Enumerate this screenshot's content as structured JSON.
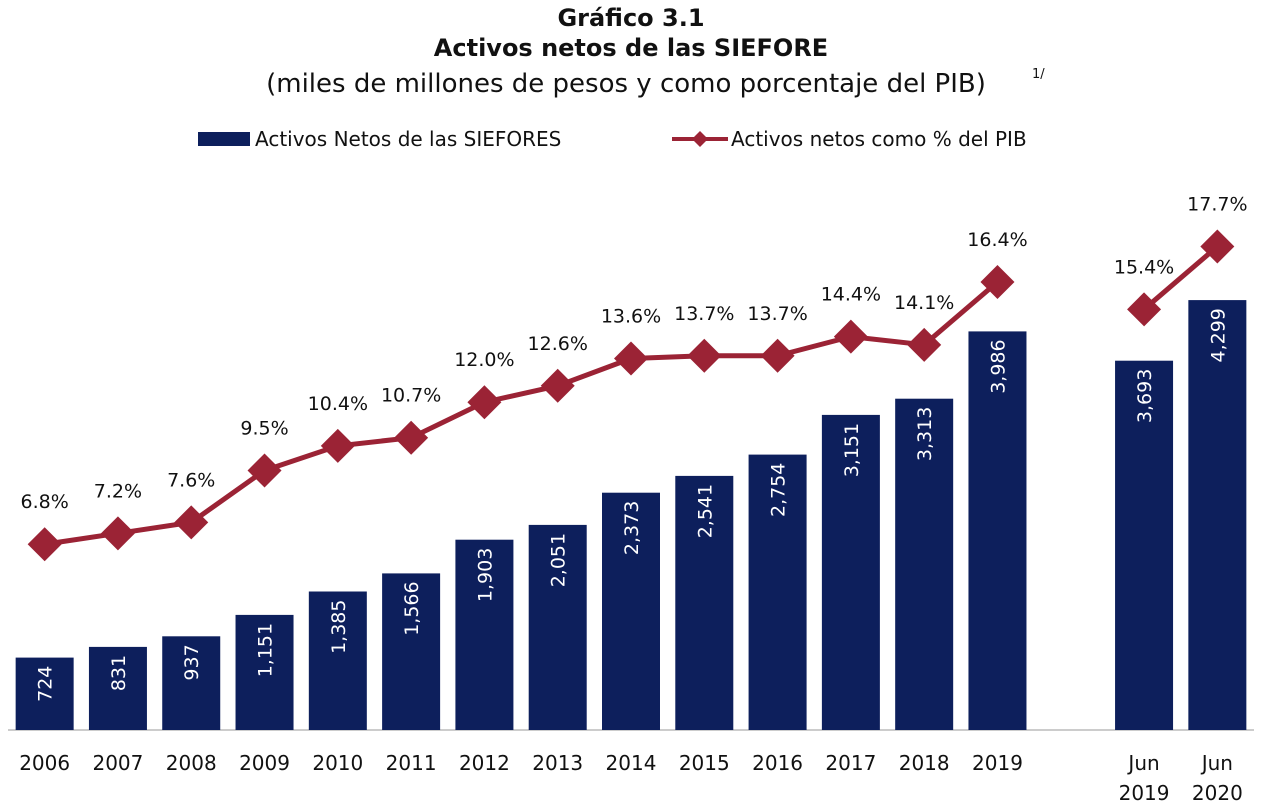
{
  "chart_data": {
    "type": "bar",
    "title": "Gráfico 3.1",
    "subtitle": "Activos netos de las SIEFORE",
    "subtitle2": "(miles de millones de pesos y como porcentaje del PIB)",
    "subtitle2_note": "1/",
    "categories": [
      "2006",
      "2007",
      "2008",
      "2009",
      "2010",
      "2011",
      "2012",
      "2013",
      "2014",
      "2015",
      "2016",
      "2017",
      "2018",
      "2019",
      null,
      "Jun 2019",
      "Jun 2020"
    ],
    "ylim": [
      0,
      5600
    ],
    "y2lim": [
      0,
      20.5
    ],
    "series": [
      {
        "name": "Activos Netos de las SIEFORES",
        "type": "bar",
        "color": "#0d1f5c",
        "values": [
          724,
          831,
          937,
          1151,
          1385,
          1566,
          1903,
          2051,
          2373,
          2541,
          2754,
          3151,
          3313,
          3986,
          null,
          3693,
          4299
        ],
        "value_labels": [
          "724",
          "831",
          "937",
          "1,151",
          "1,385",
          "1,566",
          "1,903",
          "2,051",
          "2,373",
          "2,541",
          "2,754",
          "3,151",
          "3,313",
          "3,986",
          null,
          "3,693",
          "4,299"
        ]
      },
      {
        "name": "Activos netos como % del PIB",
        "type": "line",
        "axis": "y2",
        "color": "#9b2335",
        "values": [
          6.8,
          7.2,
          7.6,
          9.5,
          10.4,
          10.7,
          12.0,
          12.6,
          13.6,
          13.7,
          13.7,
          14.4,
          14.1,
          16.4,
          null,
          15.4,
          17.7
        ],
        "value_labels": [
          "6.8%",
          "7.2%",
          "7.6%",
          "9.5%",
          "10.4%",
          "10.7%",
          "12.0%",
          "12.6%",
          "13.6%",
          "13.7%",
          "13.7%",
          "14.4%",
          "14.1%",
          "16.4%",
          null,
          "15.4%",
          "17.7%"
        ]
      }
    ],
    "legend": "top"
  }
}
